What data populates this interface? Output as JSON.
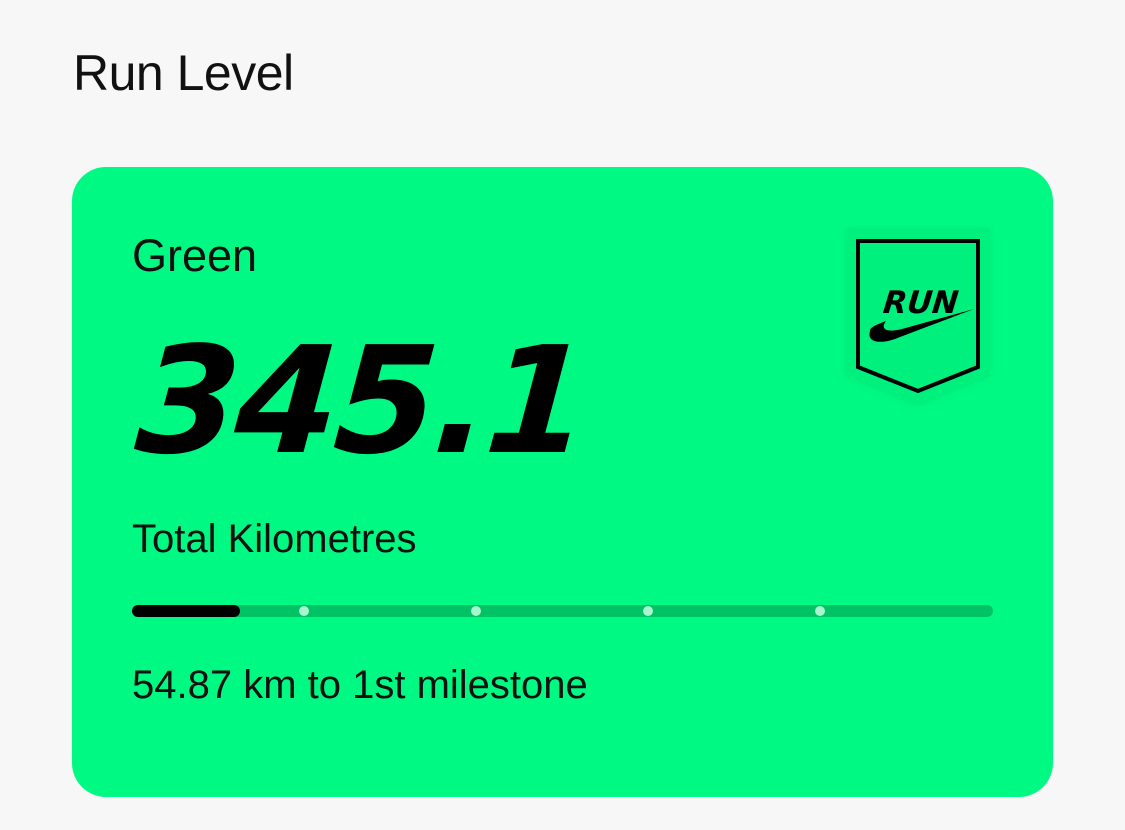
{
  "header": {
    "title": "Run Level"
  },
  "level_card": {
    "level_name": "Green",
    "total_value": "345.1",
    "total_label": "Total Kilometres",
    "milestone_text": "54.87 km to 1st milestone",
    "progress_fraction": 0.125,
    "milestone_count": 4,
    "badge": {
      "icon": "run-badge-icon",
      "label": "RUN"
    },
    "colors": {
      "card_background": "#00f982",
      "track": "#00c366",
      "fill": "#000000",
      "milestone_dot": "#a8f5cf"
    }
  }
}
